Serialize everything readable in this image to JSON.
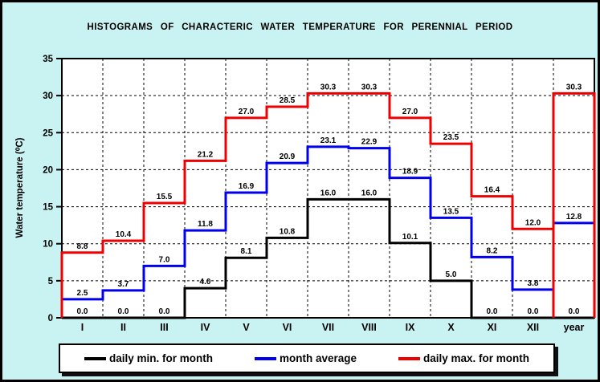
{
  "window": {
    "background_color": "#c9f2f2",
    "border_color": "#000000"
  },
  "chart_data": {
    "type": "line",
    "subtype": "step-histogram",
    "title": "HISTOGRAMS OF CHARACTERIC WATER TEMPERATURE FOR PERENNIAL PERIOD",
    "xlabel": "",
    "ylabel": "Water temperature (⁰C)",
    "ylim": [
      0,
      35
    ],
    "yticks": [
      0,
      5,
      10,
      15,
      20,
      25,
      30,
      35
    ],
    "grid": true,
    "grid_style": "dashed",
    "legend_position": "bottom",
    "plot_background": "#ffffff",
    "categories": [
      "I",
      "II",
      "III",
      "IV",
      "V",
      "VI",
      "VII",
      "VIII",
      "IX",
      "X",
      "XI",
      "XII",
      "year"
    ],
    "series": [
      {
        "key": "daily-min",
        "name": "daily min. for month",
        "color": "#000000",
        "values": [
          0.0,
          0.0,
          0.0,
          4.0,
          8.1,
          10.8,
          16.0,
          16.0,
          10.1,
          5.0,
          0.0,
          0.0,
          0.0
        ],
        "start_at_zero": true,
        "end_at_zero": true,
        "dip_to_zero_before_last": false
      },
      {
        "key": "month-average",
        "name": "month average",
        "color": "#0000ee",
        "values": [
          2.5,
          3.7,
          7.0,
          11.8,
          16.9,
          20.9,
          23.1,
          22.9,
          18.9,
          13.5,
          8.2,
          3.8,
          12.8
        ],
        "start_at_zero": true,
        "end_at_zero": true,
        "dip_to_zero_before_last": false
      },
      {
        "key": "daily-max",
        "name": "daily max. for month",
        "color": "#ee0000",
        "values": [
          8.8,
          10.4,
          15.5,
          21.2,
          27.0,
          28.5,
          30.3,
          30.3,
          27.0,
          23.5,
          16.4,
          12.0,
          30.3
        ],
        "start_at_zero": true,
        "end_at_zero": true,
        "dip_to_zero_before_last": true
      }
    ]
  }
}
